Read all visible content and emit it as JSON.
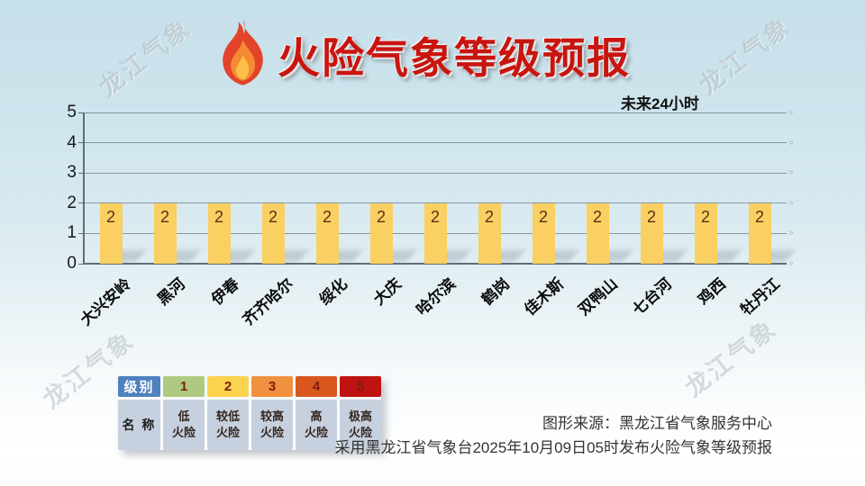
{
  "watermark": {
    "text": "龙江气象"
  },
  "header": {
    "title": "火险气象等级预报",
    "title_color": "#C9150F",
    "flame_icon": "flame-icon"
  },
  "chart_data": {
    "type": "bar",
    "title": "未来24小时",
    "categories": [
      "大兴安岭",
      "黑河",
      "伊春",
      "齐齐哈尔",
      "绥化",
      "大庆",
      "哈尔滨",
      "鹤岗",
      "佳木斯",
      "双鸭山",
      "七台河",
      "鸡西",
      "牡丹江"
    ],
    "values": [
      2,
      2,
      2,
      2,
      2,
      2,
      2,
      2,
      2,
      2,
      2,
      2,
      2
    ],
    "xlabel": "",
    "ylabel": "",
    "ylim": [
      0,
      5
    ],
    "yticks": [
      0,
      1,
      2,
      3,
      4,
      5
    ],
    "grid": true,
    "legend_position": "none",
    "bar_color": "#f9d061",
    "value_label_color": "#5c2e16"
  },
  "legend": {
    "level_label": "级别",
    "name_label": "名 称",
    "header_bg": "#4e81bd",
    "cell_bg": "#c7d0de",
    "levels": [
      {
        "level": "1",
        "name": "低火险",
        "lines": [
          "低",
          "火险"
        ],
        "color": "#afca80"
      },
      {
        "level": "2",
        "name": "较低火险",
        "lines": [
          "较低",
          "火险"
        ],
        "color": "#fcd34f"
      },
      {
        "level": "3",
        "name": "较高火险",
        "lines": [
          "较高",
          "火险"
        ],
        "color": "#f0913f"
      },
      {
        "level": "4",
        "name": "高火险",
        "lines": [
          "高",
          "火险"
        ],
        "color": "#d8581f"
      },
      {
        "level": "5",
        "name": "极高火险",
        "lines": [
          "极高",
          "火险"
        ],
        "color": "#be1310"
      }
    ]
  },
  "footer": {
    "source": "图形来源：黑龙江省气象服务中心",
    "issued": "采用黑龙江省气象台2025年10月09日05时发布火险气象等级预报"
  }
}
